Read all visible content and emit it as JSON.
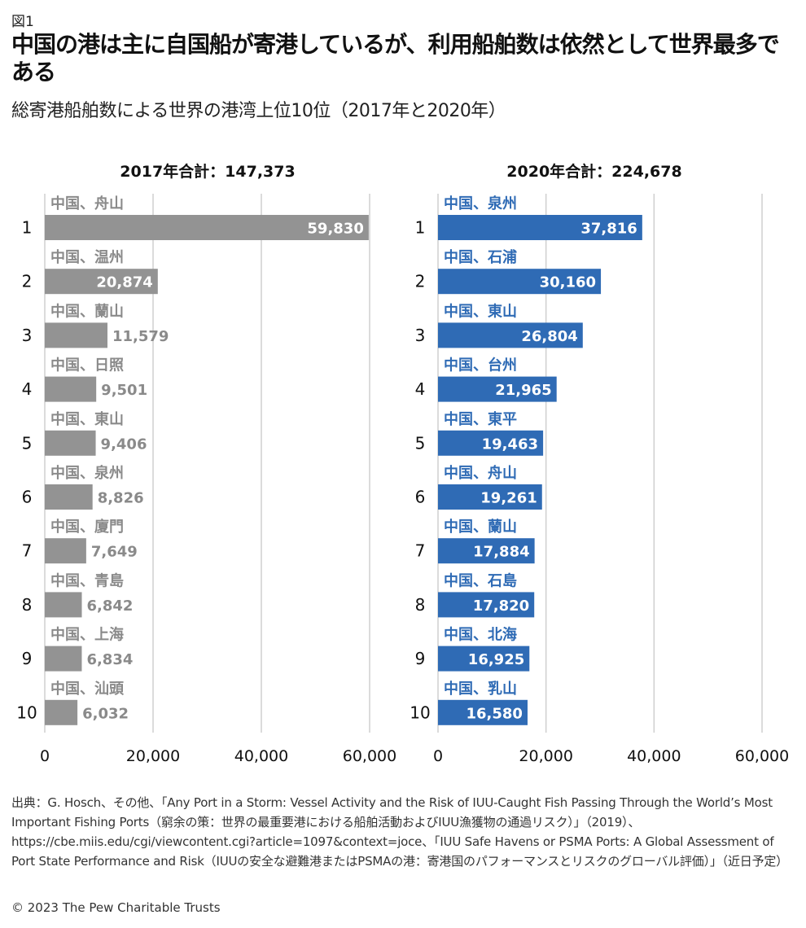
{
  "header": {
    "figure_label": "図1",
    "title": "中国の港は主に自国船が寄港しているが、利用船舶数は依然として世界最多である",
    "subtitle": "総寄港船舶数による世界の港湾上位10位（2017年と2020年）"
  },
  "chart_data": [
    {
      "type": "bar",
      "orientation": "horizontal",
      "title": "2017年合計：147,373",
      "ranks": [
        "1",
        "2",
        "3",
        "4",
        "5",
        "6",
        "7",
        "8",
        "9",
        "10"
      ],
      "categories": [
        "中国、舟山",
        "中国、温州",
        "中国、蘭山",
        "中国、日照",
        "中国、東山",
        "中国、泉州",
        "中国、廈門",
        "中国、青島",
        "中国、上海",
        "中国、汕頭"
      ],
      "values": [
        59830,
        20874,
        11579,
        9501,
        9406,
        8826,
        7649,
        6842,
        6834,
        6032
      ],
      "value_labels": [
        "59,830",
        "20,874",
        "11,579",
        "9,501",
        "9,406",
        "8,826",
        "7,649",
        "6,842",
        "6,834",
        "6,032"
      ],
      "xlim": [
        0,
        60000
      ],
      "xticks": [
        0,
        20000,
        40000,
        60000
      ],
      "xtick_labels": [
        "0",
        "20,000",
        "40,000",
        "60,000"
      ],
      "grid": true,
      "bar_color": "#939393",
      "label_color": "#8a8a8a"
    },
    {
      "type": "bar",
      "orientation": "horizontal",
      "title": "2020年合計：224,678",
      "ranks": [
        "1",
        "2",
        "3",
        "4",
        "5",
        "6",
        "7",
        "8",
        "9",
        "10"
      ],
      "categories": [
        "中国、泉州",
        "中国、石浦",
        "中国、東山",
        "中国、台州",
        "中国、東平",
        "中国、舟山",
        "中国、蘭山",
        "中国、石島",
        "中国、北海",
        "中国、乳山"
      ],
      "values": [
        37816,
        30160,
        26804,
        21965,
        19463,
        19261,
        17884,
        17820,
        16925,
        16580
      ],
      "value_labels": [
        "37,816",
        "30,160",
        "26,804",
        "21,965",
        "19,463",
        "19,261",
        "17,884",
        "17,820",
        "16,925",
        "16,580"
      ],
      "xlim": [
        0,
        60000
      ],
      "xticks": [
        0,
        20000,
        40000,
        60000
      ],
      "xtick_labels": [
        "0",
        "20,000",
        "40,000",
        "60,000"
      ],
      "grid": true,
      "bar_color": "#2f6bb5",
      "label_color": "#2f6bb5"
    }
  ],
  "footer": {
    "source": "出典：G. Hosch、その他、「Any Port in a Storm: Vessel Activity and the Risk of IUU-Caught Fish Passing Through the World’s Most Important Fishing Ports（窮余の策：世界の最重要港における船舶活動およびIUU漁獲物の通過リスク）」（2019）、https://cbe.miis.edu/cgi/viewcontent.cgi?article=1097&context=joce、「IUU Safe Havens or PSMA Ports: A Global Assessment of Port State Performance and Risk（IUUの安全な避難港またはPSMAの港：寄港国のパフォーマンスとリスクのグローバル評価）」（近日予定）",
    "copyright": "© 2023 The Pew Charitable Trusts"
  }
}
